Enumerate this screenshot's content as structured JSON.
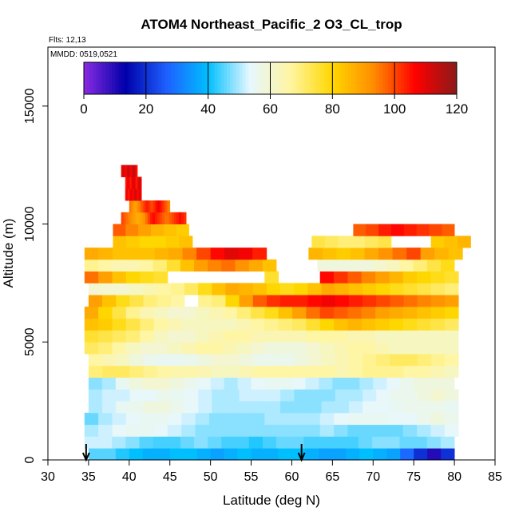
{
  "chart_data": {
    "type": "heatmap",
    "title": "ATOM4 Northeast_Pacific_2 O3_CL_trop",
    "flights_text": "Flts: 12,13",
    "dates_text": "MMDD: 0519,0521",
    "xlabel": "Latitude (deg N)",
    "ylabel": "Altitude (m)",
    "xlim": [
      30,
      85
    ],
    "ylim": [
      0,
      17500
    ],
    "x_ticks": [
      30,
      35,
      40,
      45,
      50,
      55,
      60,
      65,
      70,
      75,
      80,
      85
    ],
    "y_ticks": [
      0,
      5000,
      10000,
      15000
    ],
    "grid": false,
    "colorbar": {
      "position": "top inside plot",
      "min": 0,
      "max": 120,
      "ticks": [
        0,
        20,
        40,
        60,
        80,
        100,
        120
      ],
      "colors": [
        "#8a2be2",
        "#0000aa",
        "#1e60ff",
        "#00bfff",
        "#e6f7ff",
        "#fff5a0",
        "#ffd700",
        "#ff8c00",
        "#ff0000",
        "#8b1a1a"
      ]
    },
    "arrows_at_latitude": [
      34.7,
      61.2
    ],
    "band_height_m": 500,
    "bands": [
      {
        "alt": 250,
        "x0": 35,
        "x1": 80,
        "values": [
          45,
          45,
          42,
          40,
          38,
          38,
          40,
          40,
          38,
          36,
          38,
          40,
          38,
          38,
          40,
          40,
          38,
          36,
          36,
          38,
          40,
          38,
          36,
          28,
          20,
          10,
          20
        ]
      },
      {
        "alt": 750,
        "x0": 34.5,
        "x1": 80,
        "values": [
          52,
          52,
          50,
          48,
          45,
          44,
          44,
          46,
          48,
          46,
          44,
          44,
          42,
          44,
          46,
          46,
          44,
          44,
          44,
          44,
          46,
          48,
          48,
          46,
          46,
          48,
          50
        ]
      },
      {
        "alt": 1250,
        "x0": 34.5,
        "x1": 80.5,
        "values": [
          50,
          52,
          54,
          55,
          55,
          54,
          52,
          50,
          48,
          48,
          48,
          48,
          48,
          48,
          48,
          48,
          48,
          50,
          48,
          46,
          46,
          46,
          46,
          48,
          50,
          52,
          54
        ]
      },
      {
        "alt": 1750,
        "x0": 34.5,
        "x1": 80.5,
        "values": [
          46,
          50,
          52,
          54,
          55,
          55,
          54,
          52,
          50,
          48,
          48,
          48,
          48,
          50,
          50,
          50,
          50,
          52,
          54,
          55,
          55,
          55,
          54,
          54,
          56,
          58,
          56
        ]
      },
      {
        "alt": 2250,
        "x0": 35,
        "x1": 80.5,
        "values": [
          50,
          52,
          55,
          56,
          58,
          58,
          56,
          54,
          52,
          50,
          50,
          50,
          50,
          50,
          48,
          48,
          48,
          50,
          50,
          52,
          54,
          54,
          55,
          56,
          56,
          56,
          55
        ]
      },
      {
        "alt": 2750,
        "x0": 35,
        "x1": 80.5,
        "values": [
          50,
          52,
          52,
          54,
          54,
          56,
          55,
          54,
          52,
          50,
          50,
          52,
          52,
          52,
          50,
          48,
          48,
          48,
          50,
          50,
          52,
          54,
          56,
          56,
          58,
          60,
          58
        ]
      },
      {
        "alt": 3250,
        "x0": 35,
        "x1": 80,
        "values": [
          48,
          50,
          55,
          58,
          60,
          60,
          58,
          56,
          54,
          52,
          50,
          52,
          54,
          55,
          55,
          54,
          52,
          50,
          48,
          48,
          50,
          52,
          54,
          56,
          58,
          58,
          58
        ]
      },
      {
        "alt": 3750,
        "x0": 35,
        "x1": 80.5,
        "values": [
          70,
          72,
          72,
          70,
          68,
          66,
          65,
          65,
          64,
          62,
          62,
          64,
          66,
          66,
          66,
          66,
          66,
          66,
          64,
          66,
          68,
          68,
          68,
          66,
          66,
          64,
          62
        ]
      },
      {
        "alt": 4250,
        "x0": 35,
        "x1": 80.5,
        "values": [
          66,
          64,
          62,
          58,
          56,
          55,
          55,
          56,
          58,
          60,
          60,
          58,
          56,
          56,
          56,
          58,
          60,
          62,
          64,
          66,
          68,
          70,
          72,
          72,
          70,
          68,
          66
        ]
      },
      {
        "alt": 4750,
        "x0": 34.5,
        "x1": 80.5,
        "values": [
          72,
          70,
          66,
          62,
          60,
          60,
          62,
          64,
          66,
          66,
          64,
          62,
          60,
          58,
          58,
          58,
          60,
          62,
          64,
          66,
          66,
          64,
          62,
          62,
          62,
          62,
          62
        ]
      },
      {
        "alt": 5250,
        "x0": 34.5,
        "x1": 80.5,
        "values": [
          76,
          74,
          72,
          70,
          66,
          62,
          60,
          60,
          62,
          64,
          66,
          66,
          64,
          64,
          64,
          64,
          66,
          66,
          66,
          64,
          64,
          62,
          62,
          62,
          62,
          62,
          62
        ]
      },
      {
        "alt": 5750,
        "x0": 34.5,
        "x1": 80.5,
        "values": [
          84,
          82,
          78,
          74,
          70,
          66,
          64,
          62,
          62,
          62,
          62,
          64,
          66,
          68,
          70,
          72,
          76,
          80,
          84,
          86,
          84,
          82,
          80,
          78,
          76,
          74,
          72
        ]
      },
      {
        "alt": 6250,
        "x0": 34.5,
        "x1": 80.5,
        "values": [
          88,
          80,
          74,
          68,
          64,
          62,
          60,
          60,
          62,
          64,
          66,
          70,
          74,
          78,
          84,
          90,
          96,
          100,
          98,
          96,
          94,
          90,
          88,
          86,
          84,
          82,
          80
        ]
      },
      {
        "alt": 6750,
        "x0": 35,
        "x1": 80.5,
        "values": [
          90,
          84,
          78,
          74,
          70,
          68,
          66,
          66,
          68,
          70,
          80,
          90,
          98,
          102,
          104,
          104,
          106,
          108,
          106,
          104,
          102,
          100,
          98,
          96,
          94,
          92,
          90
        ]
      },
      {
        "alt": 7250,
        "x0": 35,
        "x1": 80.5,
        "values": [
          60,
          60,
          60,
          62,
          64,
          66,
          68,
          72,
          78,
          84,
          88,
          86,
          84,
          80,
          78,
          80,
          84,
          88,
          86,
          84,
          82,
          80,
          78,
          76,
          74,
          72,
          70
        ]
      },
      {
        "alt": 7750,
        "x0": 34.5,
        "x1": 80.5,
        "values": [
          96,
          90,
          84,
          80,
          78,
          76,
          74,
          72,
          72,
          74,
          76,
          78,
          78,
          76,
          76,
          94,
          100,
          106,
          102,
          98,
          94,
          90,
          86,
          82,
          80,
          78,
          76
        ]
      },
      {
        "alt": 8250,
        "x0": 34.5,
        "x1": 80,
        "values": [
          68,
          66,
          64,
          64,
          66,
          70,
          76,
          84,
          90,
          94,
          96,
          92,
          88,
          84,
          80,
          58,
          58,
          58,
          58,
          58,
          58,
          60,
          62,
          66,
          70,
          74,
          78
        ]
      },
      {
        "alt": 8750,
        "x0": 34.5,
        "x1": 81,
        "values": [
          88,
          86,
          84,
          84,
          84,
          86,
          88,
          94,
          100,
          106,
          110,
          108,
          104,
          100,
          96,
          90,
          86,
          84,
          82,
          84,
          88,
          92,
          96,
          100,
          90,
          86,
          84
        ]
      },
      {
        "alt": 9250,
        "x0": 38,
        "x1": 82,
        "values": [
          84,
          82,
          80,
          80,
          82,
          84,
          84,
          82,
          80,
          78,
          80,
          82,
          80,
          78,
          76,
          74,
          72,
          70,
          70,
          72,
          74,
          76,
          78,
          80,
          82,
          84,
          86
        ]
      },
      {
        "alt": 9750,
        "x0": 38,
        "x1": 80,
        "values": [
          98,
          94,
          90,
          86,
          84,
          82,
          80,
          78,
          78,
          80,
          84,
          88,
          92,
          96,
          100,
          104,
          106,
          104,
          100,
          98,
          100,
          104,
          106,
          104,
          102,
          100,
          98
        ]
      },
      {
        "alt": 10250,
        "x0": 39,
        "x1": 47,
        "values": [
          100,
          98,
          96,
          94,
          92,
          90,
          88,
          88,
          90,
          92,
          96,
          100,
          104,
          106,
          104,
          102,
          100,
          98,
          96,
          96,
          98,
          100,
          102,
          104,
          106,
          104,
          102
        ]
      },
      {
        "alt": 10750,
        "x0": 40,
        "x1": 45,
        "values": [
          96,
          94,
          92,
          90,
          90,
          92,
          94,
          96,
          98,
          100,
          102,
          104,
          104,
          102,
          100,
          100,
          102,
          104,
          106,
          108,
          106,
          104,
          102,
          100,
          98,
          96,
          94
        ]
      },
      {
        "alt": 11250,
        "x0": 39.5,
        "x1": 41.5,
        "values": [
          104,
          106,
          108,
          108,
          106,
          104,
          104,
          106,
          108,
          110,
          110,
          108,
          106,
          106,
          108,
          110,
          112,
          112,
          110,
          108,
          106,
          106,
          108,
          110,
          112,
          110,
          108
        ]
      },
      {
        "alt": 11750,
        "x0": 39.5,
        "x1": 41.5,
        "values": [
          102,
          104,
          106,
          108,
          110,
          110,
          108,
          106,
          104,
          104,
          106,
          108,
          110,
          112,
          112,
          110,
          108,
          106,
          104,
          104,
          106,
          108,
          110,
          112,
          112,
          110,
          108
        ]
      },
      {
        "alt": 12250,
        "x0": 39,
        "x1": 41,
        "values": [
          106,
          108,
          110,
          112,
          112,
          110,
          108,
          106,
          108,
          110,
          112,
          114,
          114,
          112,
          110,
          108,
          106,
          108,
          110,
          112,
          114,
          114,
          112,
          110,
          108,
          106,
          104
        ]
      }
    ],
    "gaps": [
      {
        "alt_min": 8500,
        "alt_max": 9500,
        "x0": 57.5,
        "x1": 62.5
      },
      {
        "alt_min": 7500,
        "alt_max": 8500,
        "x0": 58,
        "x1": 63
      },
      {
        "alt_min": 7500,
        "alt_max": 8000,
        "x0": 45,
        "x1": 56
      },
      {
        "alt_min": 9500,
        "alt_max": 10500,
        "x0": 47,
        "x1": 67
      },
      {
        "alt_min": 9000,
        "alt_max": 9500,
        "x0": 47,
        "x1": 63
      },
      {
        "alt_min": 9000,
        "alt_max": 9500,
        "x0": 72,
        "x1": 77
      },
      {
        "alt_min": 6500,
        "alt_max": 7000,
        "x0": 46,
        "x1": 49
      }
    ]
  }
}
